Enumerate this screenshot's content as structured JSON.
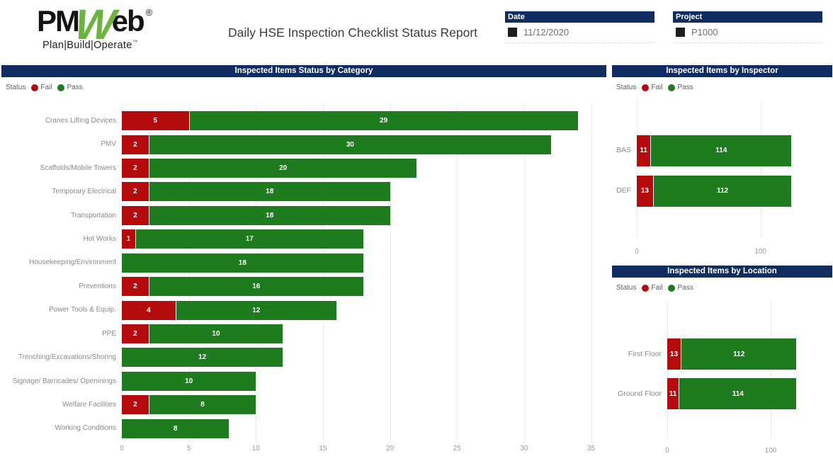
{
  "colors": {
    "navy": "#0F2D61",
    "fail": "#B60B0C",
    "pass": "#1E7C1E",
    "logo_green": "#6CB33F"
  },
  "header": {
    "logo": {
      "pm": "PM",
      "w": "W",
      "eb": "eb",
      "reg": "®",
      "tagline": "Plan|Build|Operate",
      "tm": "™"
    },
    "title": "Daily HSE Inspection Checklist Status Report",
    "slicers": [
      {
        "label": "Date",
        "value": "11/12/2020",
        "checkbox_checked": true
      },
      {
        "label": "Project",
        "value": "P1000",
        "checkbox_checked": true
      }
    ]
  },
  "chart_data": [
    {
      "type": "bar",
      "orientation": "horizontal",
      "stacked": true,
      "title": "Inspected Items Status by Category",
      "legend_label": "Status",
      "legend_position": "top-left",
      "grid": true,
      "categories": [
        "Cranes Lifting Devices",
        "PMV",
        "Scaffolds/Mobile Towers",
        "Temporary Electrical",
        "Transportation",
        "Hot Works",
        "Housekeeping/Environment",
        "Preventions",
        "Power Tools & Equip.",
        "PPE",
        "Trenching/Excavations/Shoring",
        "Signage/ Barricades/ Openinings",
        "Welfare Facilities",
        "Working Conditions"
      ],
      "series": [
        {
          "name": "Fail",
          "color": "#B60B0C",
          "values": [
            5,
            2,
            2,
            2,
            2,
            1,
            0,
            2,
            4,
            2,
            0,
            0,
            2,
            0
          ]
        },
        {
          "name": "Pass",
          "color": "#1E7C1E",
          "values": [
            29,
            30,
            20,
            18,
            18,
            17,
            18,
            16,
            12,
            10,
            12,
            10,
            8,
            8
          ]
        }
      ],
      "x_ticks": [
        0,
        5,
        10,
        15,
        20,
        25,
        30,
        35
      ],
      "x_max": 35.5,
      "xlabel": "",
      "ylabel": ""
    },
    {
      "type": "bar",
      "orientation": "horizontal",
      "stacked": true,
      "title": "Inspected Items by Inspector",
      "legend_label": "Status",
      "legend_position": "top-left",
      "grid": true,
      "categories": [
        "BAS",
        "DEF"
      ],
      "series": [
        {
          "name": "Fail",
          "color": "#B60B0C",
          "values": [
            11,
            13
          ]
        },
        {
          "name": "Pass",
          "color": "#1E7C1E",
          "values": [
            114,
            112
          ]
        }
      ],
      "x_ticks": [
        0,
        100
      ],
      "x_max": 150,
      "xlabel": "",
      "ylabel": ""
    },
    {
      "type": "bar",
      "orientation": "horizontal",
      "stacked": true,
      "title": "Inspected Items by Location",
      "legend_label": "Status",
      "legend_position": "top-left",
      "grid": true,
      "categories": [
        "First Floor",
        "Ground Floor"
      ],
      "series": [
        {
          "name": "Fail",
          "color": "#B60B0C",
          "values": [
            13,
            11
          ]
        },
        {
          "name": "Pass",
          "color": "#1E7C1E",
          "values": [
            112,
            114
          ]
        }
      ],
      "x_ticks": [
        0,
        100
      ],
      "x_max": 150,
      "xlabel": "",
      "ylabel": ""
    }
  ]
}
